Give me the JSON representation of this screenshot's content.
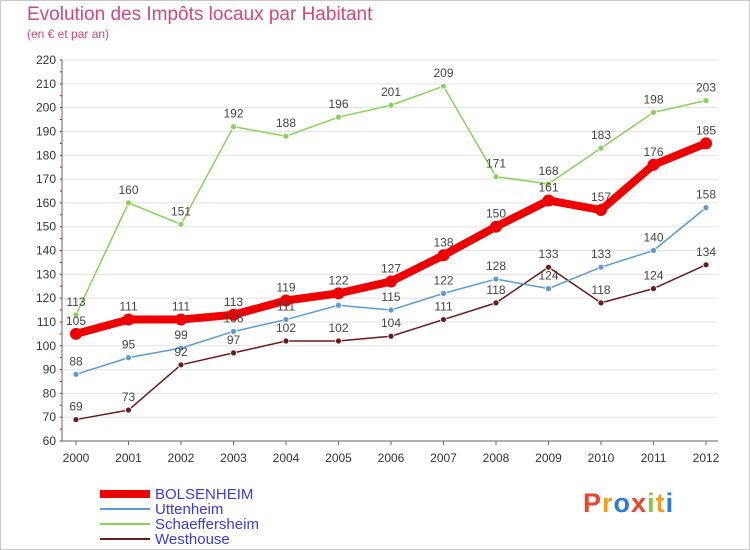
{
  "header": {
    "title": "Evolution des Impôts locaux par Habitant",
    "subtitle": "(en € et par an)"
  },
  "chart_data": {
    "type": "line",
    "title": "Evolution des Impôts locaux par Habitant",
    "subtitle": "(en € et par an)",
    "xlabel": "",
    "ylabel": "",
    "ylim": [
      60,
      220
    ],
    "y_ticks": [
      "60",
      "70",
      "80",
      "90",
      "100",
      "110",
      "120",
      "130",
      "140",
      "150",
      "160",
      "170",
      "180",
      "190",
      "200",
      "210",
      "220"
    ],
    "categories": [
      "2000",
      "2001",
      "2002",
      "2003",
      "2004",
      "2005",
      "2006",
      "2007",
      "2008",
      "2009",
      "2010",
      "2011",
      "2012"
    ],
    "grid": "horizontal",
    "legend": "bottom-left",
    "series": [
      {
        "name": "Westhouse",
        "color": "#6b1a1a",
        "values": [
          69,
          73,
          92,
          97,
          102,
          102,
          104,
          111,
          118,
          133,
          118,
          124,
          134
        ],
        "labels": [
          "69",
          "73",
          "92",
          "97",
          "102",
          "102",
          "104",
          "111",
          "118",
          "133",
          "118",
          "124",
          "134"
        ]
      },
      {
        "name": "Uttenheim",
        "color": "#5a9bd5",
        "values": [
          88,
          95,
          99,
          106,
          111,
          117,
          115,
          122,
          128,
          124,
          133,
          140,
          158
        ],
        "labels": [
          "88",
          "95",
          "99",
          "106",
          "111",
          "",
          "115",
          "122",
          "128",
          "124",
          "133",
          "140",
          "158"
        ]
      },
      {
        "name": "Schaeffersheim",
        "color": "#86d35a",
        "values": [
          113,
          160,
          151,
          192,
          188,
          196,
          201,
          209,
          171,
          168,
          183,
          198,
          203
        ],
        "labels": [
          "113",
          "160",
          "151",
          "192",
          "188",
          "196",
          "201",
          "209",
          "171",
          "168",
          "183",
          "198",
          "203"
        ]
      },
      {
        "name": "BOLSENHEIM",
        "color": "#ee0000",
        "values": [
          105,
          111,
          111,
          113,
          119,
          122,
          127,
          138,
          150,
          161,
          157,
          176,
          185
        ],
        "labels": [
          "105",
          "111",
          "111",
          "113",
          "119",
          "122",
          "127",
          "138",
          "150",
          "161",
          "157",
          "176",
          "185"
        ]
      }
    ]
  },
  "legend": [
    {
      "name": "BOLSENHEIM",
      "color": "#ee0000"
    },
    {
      "name": "Uttenheim",
      "color": "#5a9bd5"
    },
    {
      "name": "Schaeffersheim",
      "color": "#86d35a"
    },
    {
      "name": "Westhouse",
      "color": "#6b1a1a"
    }
  ],
  "logo": {
    "letters": [
      "P",
      "r",
      "o",
      "x",
      "i",
      "t",
      "i"
    ],
    "colors": [
      "#e8452d",
      "#f0a020",
      "#2e7bd6",
      "#e8452d",
      "#8cc63f",
      "#f0a020",
      "#2e7bd6"
    ]
  }
}
